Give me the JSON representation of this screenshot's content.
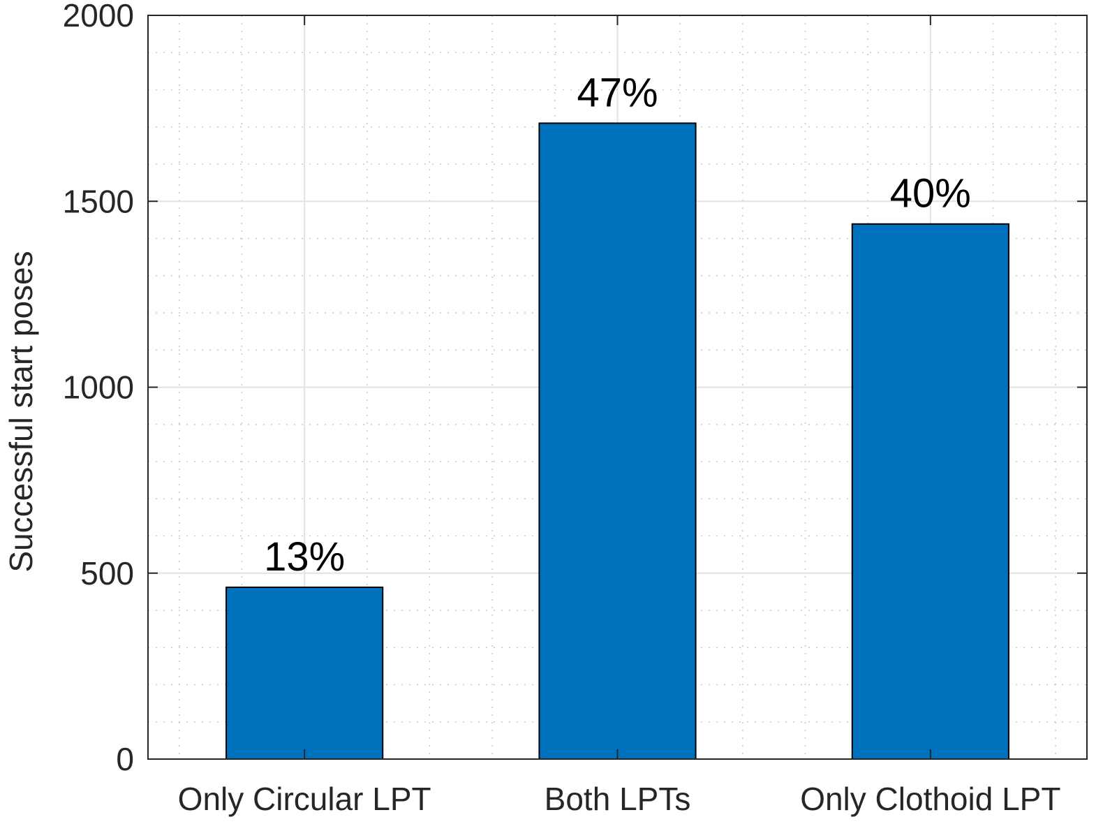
{
  "chart_data": {
    "type": "bar",
    "categories": [
      "Only Circular LPT",
      "Both LPTs",
      "Only Clothoid LPT"
    ],
    "values": [
      462,
      1710,
      1439
    ],
    "data_labels": [
      "13%",
      "47%",
      "40%"
    ],
    "title": "",
    "xlabel": "",
    "ylabel": "Successful start poses",
    "ylim": [
      0,
      2000
    ],
    "yticks": [
      "0",
      "500",
      "1000",
      "1500",
      "2000"
    ],
    "grid": "on (major solid, minor dotted)",
    "bar_color": "#0072BD",
    "bar_edge_color": "#000000"
  }
}
